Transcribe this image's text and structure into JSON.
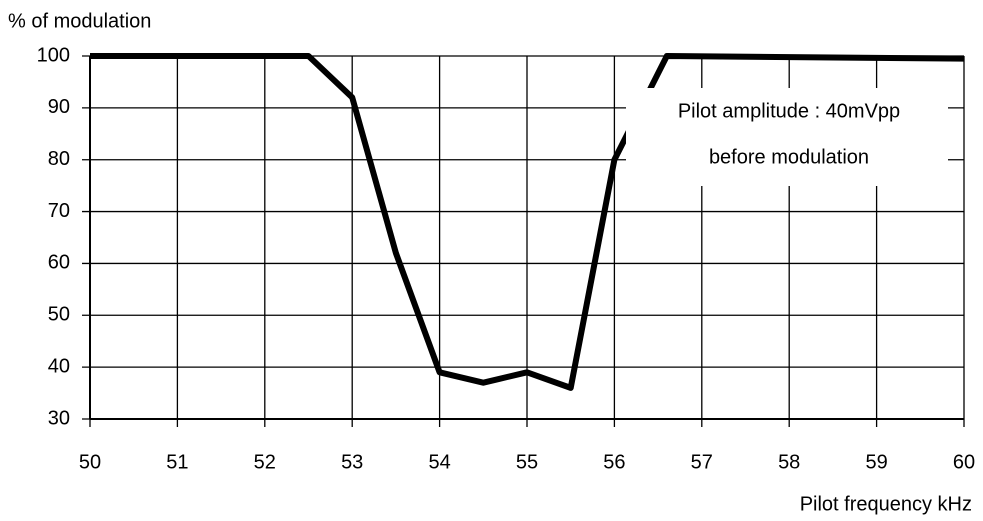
{
  "chart_data": {
    "type": "line",
    "y_label": "% of modulation",
    "x_label": "Pilot frequency  kHz",
    "annotation": [
      "Pilot amplitude : 40mVpp",
      "before modulation"
    ],
    "x": [
      50,
      52.5,
      53,
      53.5,
      54,
      54.5,
      55,
      55.5,
      56,
      56.6,
      60
    ],
    "series": [
      {
        "color": "#000000",
        "values": [
          100,
          100,
          92,
          62,
          39,
          37,
          39,
          36,
          80,
          100,
          99.5
        ]
      }
    ],
    "xlim": [
      50,
      60
    ],
    "xticks": [
      50,
      51,
      52,
      53,
      54,
      55,
      56,
      57,
      58,
      59,
      60
    ],
    "ylim": [
      30,
      100
    ],
    "yticks": [
      30,
      40,
      50,
      60,
      70,
      80,
      90,
      100
    ],
    "grid": true
  }
}
